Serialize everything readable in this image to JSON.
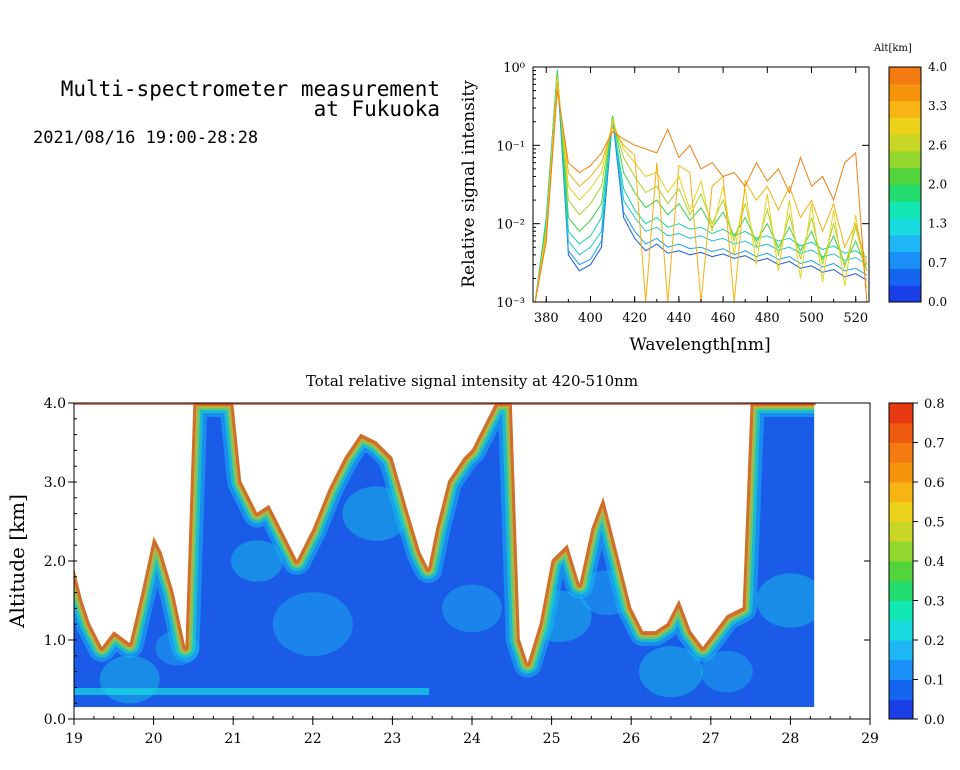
{
  "header": {
    "title_line1": "Multi-spectrometer measurement",
    "title_line2": "at Fukuoka",
    "datetime": "2021/08/16 19:00-28:28"
  },
  "chart_data": [
    {
      "type": "line",
      "xlabel": "Wavelength[nm]",
      "ylabel": "Relative signal intensity",
      "xlim": [
        374,
        526
      ],
      "ylim": [
        0.001,
        1
      ],
      "yscale": "log",
      "x_ticks": [
        "380",
        "400",
        "420",
        "440",
        "460",
        "480",
        "500",
        "520"
      ],
      "y_ticks": [
        "10⁰",
        "10⁻¹",
        "10⁻²",
        "10⁻³"
      ],
      "grid": false,
      "colorbar": {
        "title": "Alt[km]",
        "tick_labels": [
          "4.0",
          "3.3",
          "2.6",
          "2.0",
          "1.3",
          "0.7",
          "0.0"
        ],
        "colors": [
          "#1a3fe6",
          "#1466f0",
          "#1a8ff5",
          "#1fb6f5",
          "#19dce0",
          "#12e8b4",
          "#22dc6e",
          "#52d43c",
          "#93d62e",
          "#c8d626",
          "#ecd21a",
          "#f7b514",
          "#f7940e",
          "#f47a12"
        ]
      },
      "series": [
        {
          "x": [
            375,
            380,
            385,
            390,
            395,
            400,
            405,
            410,
            415,
            420,
            425,
            430,
            435,
            440,
            445,
            450,
            455,
            460,
            465,
            470,
            475,
            480,
            485,
            490,
            495,
            500,
            505,
            510,
            515,
            520,
            525
          ],
          "values": [
            0.001,
            0.01,
            0.9,
            0.004,
            0.0025,
            0.003,
            0.005,
            0.22,
            0.012,
            0.0065,
            0.0045,
            0.0055,
            0.0042,
            0.0045,
            0.004,
            0.0043,
            0.0038,
            0.0041,
            0.0036,
            0.0039,
            0.0033,
            0.0036,
            0.003,
            0.0033,
            0.0027,
            0.0029,
            0.0024,
            0.0026,
            0.0021,
            0.0023,
            0.0019
          ],
          "color": "#1a5ae0",
          "alt_km": 0.3
        },
        {
          "x": [
            375,
            380,
            385,
            390,
            395,
            400,
            405,
            410,
            415,
            420,
            425,
            430,
            435,
            440,
            445,
            450,
            455,
            460,
            465,
            470,
            475,
            480,
            485,
            490,
            495,
            500,
            505,
            510,
            515,
            520,
            525
          ],
          "values": [
            0.001,
            0.012,
            0.9,
            0.0045,
            0.003,
            0.0035,
            0.006,
            0.23,
            0.014,
            0.008,
            0.0055,
            0.0065,
            0.005,
            0.0055,
            0.0048,
            0.005,
            0.0044,
            0.0048,
            0.004,
            0.0045,
            0.0038,
            0.0042,
            0.0035,
            0.0038,
            0.0031,
            0.0034,
            0.0028,
            0.0031,
            0.0025,
            0.0027,
            0.0022
          ],
          "color": "#1aa0ee",
          "alt_km": 0.6
        },
        {
          "x": [
            375,
            380,
            385,
            390,
            395,
            400,
            405,
            410,
            415,
            420,
            425,
            430,
            435,
            440,
            445,
            450,
            455,
            460,
            465,
            470,
            475,
            480,
            485,
            490,
            495,
            500,
            505,
            510,
            515,
            520,
            525
          ],
          "values": [
            0.001,
            0.012,
            0.92,
            0.006,
            0.004,
            0.005,
            0.008,
            0.24,
            0.02,
            0.012,
            0.008,
            0.009,
            0.007,
            0.0075,
            0.0065,
            0.007,
            0.006,
            0.0065,
            0.0055,
            0.006,
            0.005,
            0.0055,
            0.0046,
            0.005,
            0.0042,
            0.0046,
            0.0038,
            0.0041,
            0.0034,
            0.0037,
            0.003
          ],
          "color": "#1fc6d8",
          "alt_km": 0.9
        },
        {
          "x": [
            375,
            380,
            385,
            390,
            395,
            400,
            405,
            410,
            415,
            420,
            425,
            430,
            435,
            440,
            445,
            450,
            455,
            460,
            465,
            470,
            475,
            480,
            485,
            490,
            495,
            500,
            505,
            510,
            515,
            520,
            525
          ],
          "values": [
            0.001,
            0.011,
            0.9,
            0.008,
            0.0055,
            0.007,
            0.012,
            0.22,
            0.028,
            0.015,
            0.01,
            0.012,
            0.009,
            0.01,
            0.0085,
            0.009,
            0.0075,
            0.0085,
            0.007,
            0.008,
            0.0065,
            0.007,
            0.006,
            0.0065,
            0.0052,
            0.0058,
            0.0047,
            0.0052,
            0.0042,
            0.0045,
            0.0037
          ],
          "color": "#16d6a6",
          "alt_km": 1.3
        },
        {
          "x": [
            375,
            380,
            385,
            390,
            395,
            400,
            405,
            410,
            415,
            420,
            425,
            430,
            435,
            440,
            445,
            450,
            455,
            460,
            465,
            470,
            475,
            480,
            485,
            490,
            495,
            500,
            505,
            510,
            515,
            520,
            525
          ],
          "values": [
            0.001,
            0.01,
            0.88,
            0.012,
            0.008,
            0.011,
            0.018,
            0.24,
            0.045,
            0.025,
            0.016,
            0.02,
            0.013,
            0.018,
            0.011,
            0.016,
            0.009,
            0.014,
            0.007,
            0.012,
            0.006,
            0.01,
            0.005,
            0.009,
            0.0045,
            0.008,
            0.0035,
            0.007,
            0.003,
            0.006,
            0.0025
          ],
          "color": "#3ad44a",
          "alt_km": 1.8
        },
        {
          "x": [
            375,
            380,
            385,
            390,
            395,
            400,
            405,
            410,
            415,
            420,
            425,
            430,
            435,
            440,
            445,
            450,
            455,
            460,
            465,
            470,
            475,
            480,
            485,
            490,
            495,
            500,
            505,
            510,
            515,
            520,
            525
          ],
          "values": [
            0.001,
            0.009,
            0.8,
            0.02,
            0.013,
            0.018,
            0.03,
            0.22,
            0.07,
            0.04,
            0.025,
            0.03,
            0.018,
            0.028,
            0.013,
            0.024,
            0.01,
            0.02,
            0.006,
            0.018,
            0.005,
            0.015,
            0.004,
            0.013,
            0.0035,
            0.012,
            0.003,
            0.01,
            0.0028,
            0.009,
            0.0025
          ],
          "color": "#a8d62a",
          "alt_km": 2.3
        },
        {
          "x": [
            375,
            380,
            385,
            390,
            395,
            400,
            405,
            410,
            415,
            420,
            425,
            430,
            435,
            440,
            445,
            450,
            455,
            460,
            465,
            470,
            475,
            480,
            485,
            490,
            495,
            500,
            505,
            510,
            515,
            520,
            525
          ],
          "values": [
            0.001,
            0.008,
            0.7,
            0.03,
            0.02,
            0.028,
            0.045,
            0.2,
            0.09,
            0.06,
            0.04,
            0.045,
            0.025,
            0.04,
            0.015,
            0.035,
            0.008,
            0.03,
            0.004,
            0.028,
            0.003,
            0.024,
            0.0025,
            0.02,
            0.002,
            0.018,
            0.0018,
            0.015,
            0.0016,
            0.013,
            0.0015
          ],
          "color": "#e6d21a",
          "alt_km": 2.8
        },
        {
          "x": [
            375,
            380,
            385,
            390,
            395,
            400,
            405,
            410,
            415,
            420,
            425,
            430,
            435,
            440,
            445,
            450,
            455,
            460,
            465,
            470,
            475,
            480,
            485,
            490,
            495,
            500,
            505,
            510,
            515,
            520,
            525
          ],
          "values": [
            0.001,
            0.007,
            0.6,
            0.045,
            0.03,
            0.04,
            0.06,
            0.17,
            0.1,
            0.075,
            0.001,
            0.06,
            0.001,
            0.055,
            0.045,
            0.001,
            0.03,
            0.04,
            0.001,
            0.035,
            0.02,
            0.03,
            0.015,
            0.03,
            0.012,
            0.02,
            0.008,
            0.018,
            0.005,
            0.01,
            0.003
          ],
          "color": "#f5b014",
          "alt_km": 3.3
        },
        {
          "x": [
            375,
            380,
            385,
            390,
            395,
            400,
            405,
            410,
            415,
            420,
            425,
            430,
            435,
            440,
            445,
            450,
            455,
            460,
            465,
            470,
            475,
            480,
            485,
            490,
            495,
            500,
            505,
            510,
            515,
            520,
            525
          ],
          "values": [
            0.001,
            0.006,
            0.5,
            0.06,
            0.045,
            0.055,
            0.08,
            0.15,
            0.12,
            0.1,
            0.09,
            0.08,
            0.16,
            0.07,
            0.1,
            0.05,
            0.06,
            0.04,
            0.045,
            0.03,
            0.06,
            0.035,
            0.05,
            0.025,
            0.07,
            0.03,
            0.04,
            0.02,
            0.06,
            0.08,
            0.001
          ],
          "color": "#f07f12",
          "alt_km": 3.8
        }
      ]
    },
    {
      "type": "heatmap",
      "title": "Total relative signal intensity at 420-510nm",
      "ylabel": "Altitude [km]",
      "xlim": [
        19,
        29
      ],
      "ylim": [
        0,
        4
      ],
      "x_ticks": [
        "19",
        "20",
        "21",
        "22",
        "23",
        "24",
        "25",
        "26",
        "27",
        "28",
        "29"
      ],
      "y_ticks": [
        "0.0",
        "1.0",
        "2.0",
        "3.0",
        "4.0"
      ],
      "colorbar": {
        "tick_labels": [
          "0.8",
          "0.7",
          "0.6",
          "0.5",
          "0.4",
          "0.3",
          "0.2",
          "0.1",
          "0.0"
        ],
        "range": [
          0,
          0.8
        ],
        "colors": [
          "#1a3fe6",
          "#1466f0",
          "#1a8ff5",
          "#1fb6f5",
          "#19dce0",
          "#12e8b4",
          "#22dc6e",
          "#52d43c",
          "#93d62e",
          "#c8d626",
          "#ecd21a",
          "#f7b514",
          "#f7940e",
          "#f47a12",
          "#f05a10",
          "#e83a12"
        ]
      },
      "data_end_hour": 28.3,
      "cloud_base_km": {
        "hours": [
          19.0,
          19.1,
          19.2,
          19.35,
          19.5,
          19.7,
          19.85,
          20.0,
          20.1,
          20.25,
          20.4,
          20.5,
          20.6,
          20.8,
          21.0,
          21.1,
          21.3,
          21.45,
          21.6,
          21.8,
          22.0,
          22.2,
          22.4,
          22.6,
          22.8,
          23.0,
          23.2,
          23.35,
          23.45,
          23.55,
          23.7,
          23.9,
          24.0,
          24.15,
          24.3,
          24.5,
          24.6,
          24.7,
          24.85,
          25.0,
          25.2,
          25.35,
          25.5,
          25.65,
          25.8,
          26.0,
          26.15,
          26.3,
          26.45,
          26.6,
          26.75,
          26.9,
          27.05,
          27.2,
          27.4,
          27.5,
          27.6,
          27.75,
          27.9,
          28.1,
          28.3
        ],
        "base": [
          1.9,
          1.5,
          1.2,
          0.9,
          1.1,
          0.95,
          1.6,
          2.3,
          2.1,
          1.6,
          0.9,
          4.0,
          4.0,
          4.0,
          4.0,
          3.0,
          2.6,
          2.7,
          2.4,
          2.0,
          2.4,
          2.9,
          3.3,
          3.6,
          3.5,
          3.3,
          2.6,
          2.1,
          1.9,
          2.4,
          3.0,
          3.3,
          3.4,
          3.7,
          4.0,
          4.0,
          1.0,
          0.7,
          1.2,
          2.0,
          2.2,
          1.7,
          2.4,
          2.8,
          2.2,
          1.4,
          1.1,
          1.1,
          1.2,
          1.5,
          1.1,
          0.9,
          1.1,
          1.3,
          1.4,
          4.0,
          4.0,
          4.0,
          4.0,
          4.0,
          4.0
        ]
      }
    }
  ]
}
